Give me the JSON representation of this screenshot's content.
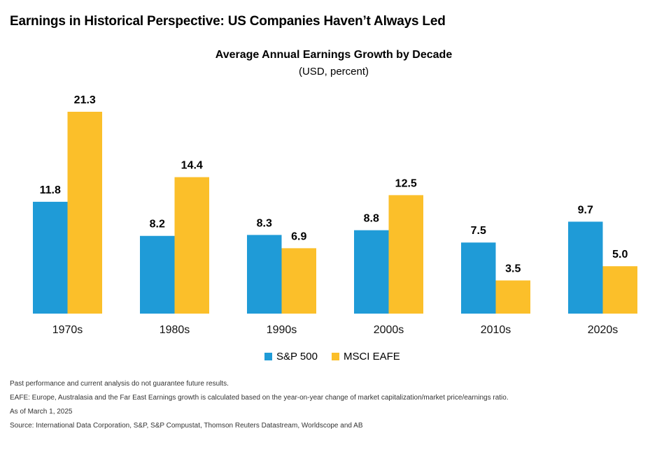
{
  "page": {
    "title": "Earnings in Historical Perspective: US Companies Haven’t Always Led"
  },
  "chart_data": {
    "type": "bar",
    "title": "Average Annual Earnings Growth by Decade",
    "subtitle": "(USD, percent)",
    "categories": [
      "1970s",
      "1980s",
      "1990s",
      "2000s",
      "2010s",
      "2020s"
    ],
    "series": [
      {
        "name": "S&P 500",
        "color": "#1f9bd7",
        "values": [
          11.8,
          8.2,
          8.3,
          8.8,
          7.5,
          9.7
        ]
      },
      {
        "name": "MSCI EAFE",
        "color": "#fbbf2a",
        "values": [
          21.3,
          14.4,
          6.9,
          12.5,
          3.5,
          5.0
        ]
      }
    ],
    "value_format": "0.0",
    "ylim": [
      0,
      21.3
    ],
    "grid": false,
    "legend": "bottom-center"
  },
  "footnotes": [
    "Past performance and current analysis do not guarantee future results.",
    "EAFE: Europe, Australasia and the Far East Earnings growth is calculated based on the year-on-year change of market capitalization/market price/earnings ratio.",
    "As of March 1, 2025",
    "Source: International Data Corporation, S&P, S&P Compustat, Thomson Reuters Datastream, Worldscope and AB"
  ]
}
